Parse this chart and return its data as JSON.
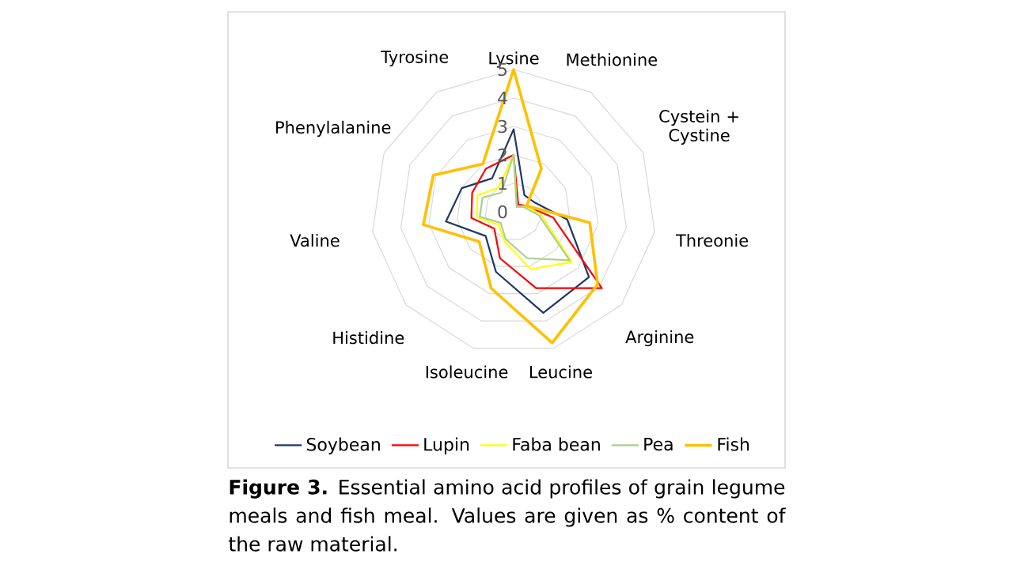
{
  "chart_data": {
    "type": "radar",
    "categories": [
      "Lysine",
      "Methionine",
      "Cystein + Cystine",
      "Threonie",
      "Arginine",
      "Leucine",
      "Isoleucine",
      "Histidine",
      "Valine",
      "Phenylalanine",
      "Tyrosine"
    ],
    "series": [
      {
        "name": "Soybean",
        "color": "#1f3864",
        "values": [
          2.9,
          0.7,
          0.8,
          1.9,
          3.5,
          3.7,
          2.2,
          1.3,
          2.4,
          2.0,
          1.4
        ]
      },
      {
        "name": "Lupin",
        "color": "#ff0000",
        "values": [
          2.0,
          0.3,
          0.5,
          1.4,
          4.1,
          2.8,
          1.7,
          0.9,
          1.5,
          1.6,
          1.8
        ]
      },
      {
        "name": "Faba bean",
        "color": "#ffff00",
        "values": [
          2.0,
          0.2,
          0.5,
          1.0,
          2.7,
          2.1,
          1.1,
          0.7,
          1.3,
          1.4,
          1.0
        ]
      },
      {
        "name": "Pea",
        "color": "#a9d18e",
        "values": [
          2.0,
          0.2,
          0.4,
          0.9,
          2.6,
          1.7,
          1.0,
          0.6,
          1.2,
          1.2,
          0.8
        ]
      },
      {
        "name": "Fish",
        "color": "#ffc000",
        "values": [
          5.0,
          1.8,
          0.5,
          2.7,
          3.9,
          4.8,
          2.8,
          1.6,
          3.2,
          3.1,
          2.0
        ]
      }
    ],
    "ylim": [
      0,
      5
    ],
    "yticks": [
      0,
      1,
      2,
      3,
      4,
      5
    ],
    "grid": true,
    "legend": "bottom",
    "marker": "none",
    "line_style": "solid",
    "annotations": [
      "**Figure 3.** Essential amino acid profiles of grain legume meals and fish meal. Values are given as % content of the raw material."
    ]
  }
}
